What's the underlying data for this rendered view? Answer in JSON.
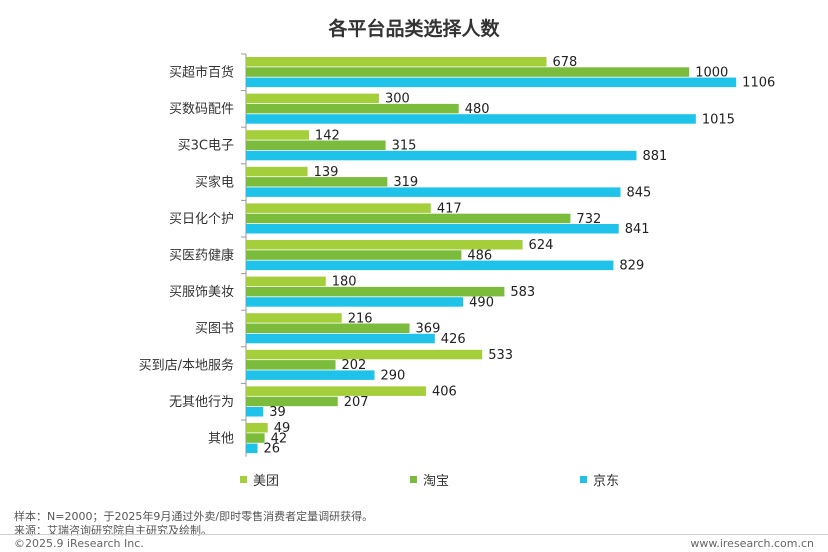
{
  "chart_data": {
    "type": "bar",
    "orientation": "horizontal",
    "title": "各平台品类选择人数",
    "categories": [
      "买超市百货",
      "买数码配件",
      "买3C电子",
      "买家电",
      "买日化个护",
      "买医药健康",
      "买服饰美妆",
      "买图书",
      "买到店/本地服务",
      "无其他行为",
      "其他"
    ],
    "series": [
      {
        "name": "美团",
        "color": "#a4cf3b",
        "values": [
          678,
          300,
          142,
          139,
          417,
          624,
          180,
          216,
          533,
          406,
          49
        ]
      },
      {
        "name": "淘宝",
        "color": "#7cbc3c",
        "values": [
          1000,
          480,
          315,
          319,
          732,
          486,
          583,
          369,
          202,
          207,
          42
        ]
      },
      {
        "name": "京东",
        "color": "#1fc3ea",
        "values": [
          1106,
          1015,
          881,
          845,
          841,
          829,
          490,
          426,
          290,
          39,
          26
        ]
      }
    ],
    "xlim": [
      0,
      1250
    ],
    "grid": false,
    "legend_position": "bottom"
  },
  "legend": {
    "items": [
      {
        "label": "美团",
        "color": "#a4cf3b"
      },
      {
        "label": "淘宝",
        "color": "#7cbc3c"
      },
      {
        "label": "京东",
        "color": "#1fc3ea"
      }
    ]
  },
  "footer": {
    "note": "样本：N=2000；于2025年9月通过外卖/即时零售消费者定量调研获得。",
    "source": "来源：艾瑞咨询研究院自主研究及绘制。",
    "copyright": "©2025.9 iResearch Inc.",
    "website": "www.iresearch.com.cn"
  }
}
